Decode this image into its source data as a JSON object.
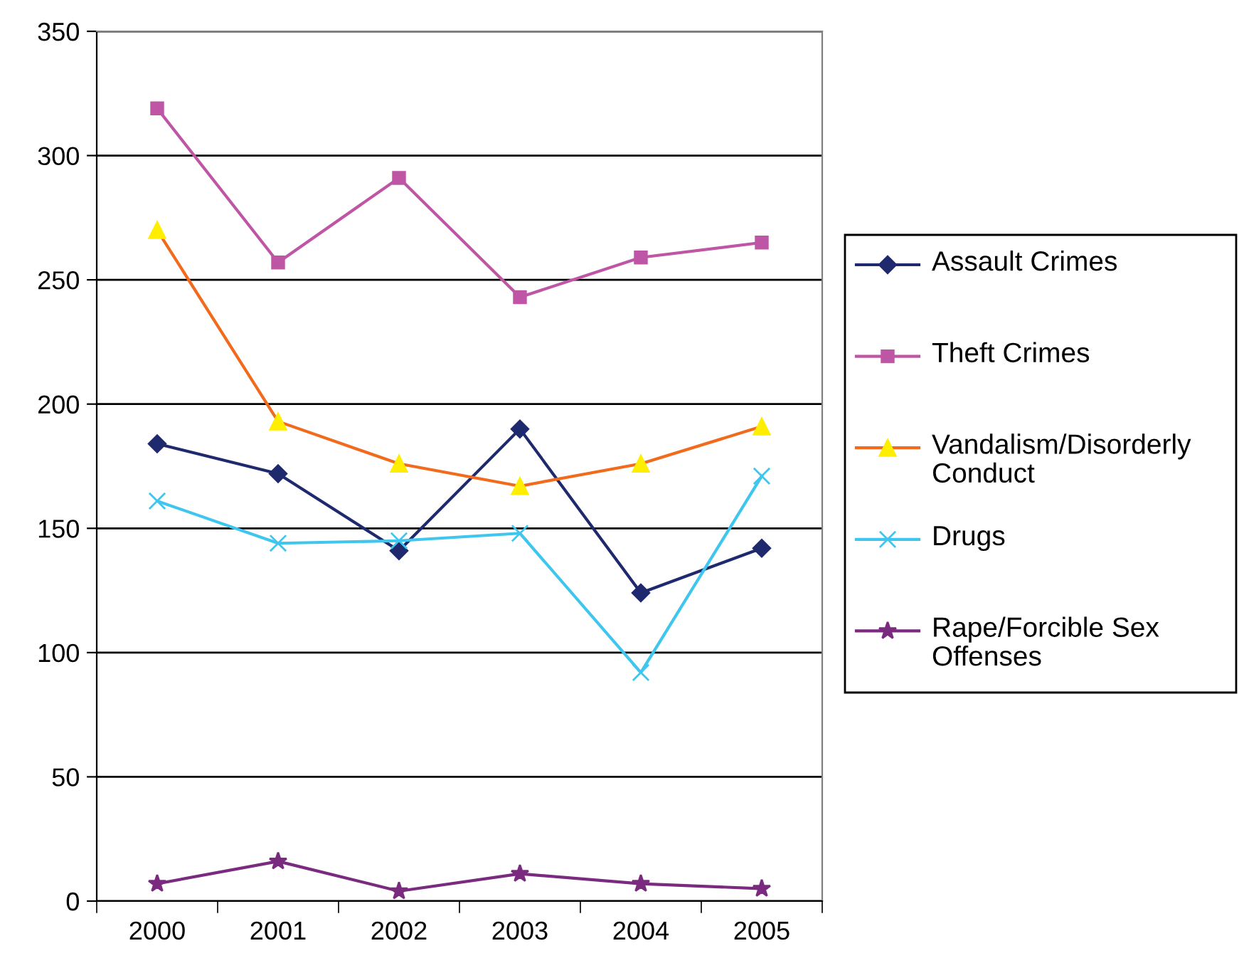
{
  "chart_data": {
    "type": "line",
    "categories": [
      "2000",
      "2001",
      "2002",
      "2003",
      "2004",
      "2005"
    ],
    "series": [
      {
        "name": "Assault Crimes",
        "color": "#1f2a6e",
        "marker": "diamond",
        "values": [
          184,
          172,
          141,
          190,
          124,
          142
        ]
      },
      {
        "name": "Theft Crimes",
        "color": "#bf55a5",
        "marker": "square",
        "values": [
          319,
          257,
          291,
          243,
          259,
          265
        ]
      },
      {
        "name": "Vandalism/Disorderly Conduct",
        "color": "#f26a1b",
        "marker": "triangle",
        "values": [
          270,
          193,
          176,
          167,
          176,
          191
        ]
      },
      {
        "name": "Drugs",
        "color": "#3fc6ee",
        "marker": "cross",
        "values": [
          161,
          144,
          145,
          148,
          92,
          171
        ]
      },
      {
        "name": "Rape/Forcible Sex Offenses",
        "color": "#7a2b7f",
        "marker": "star",
        "values": [
          7,
          16,
          4,
          11,
          7,
          5
        ]
      }
    ],
    "ylim": [
      0,
      350
    ],
    "yticks": [
      0,
      50,
      100,
      150,
      200,
      250,
      300,
      350
    ],
    "grid": "y",
    "legend": "right"
  }
}
